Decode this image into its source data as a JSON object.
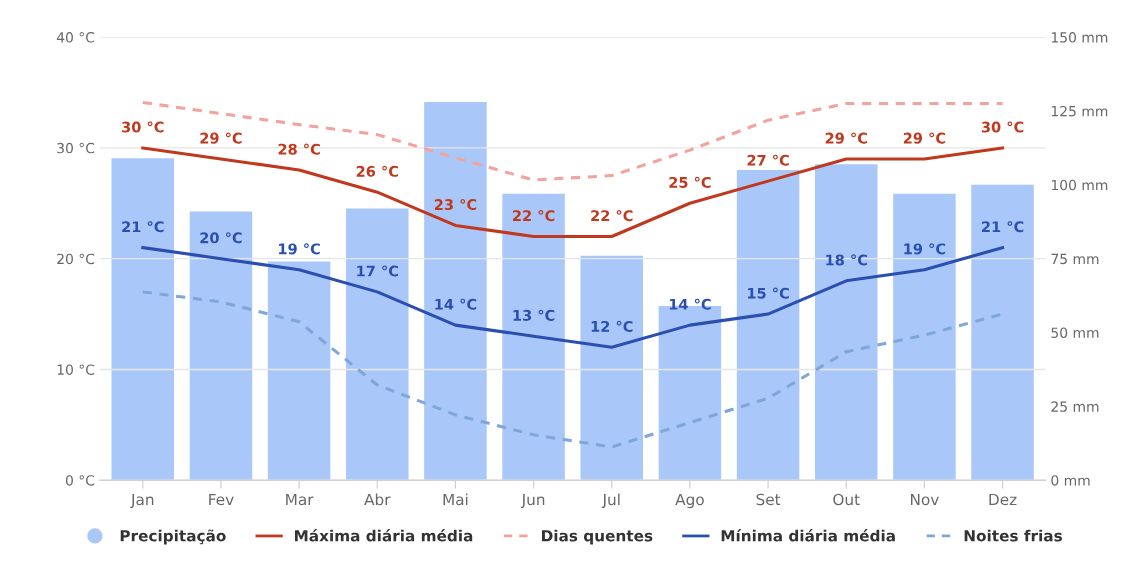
{
  "chart_data": {
    "type": "bar",
    "categories": [
      "Jan",
      "Fev",
      "Mar",
      "Abr",
      "Mai",
      "Jun",
      "Jul",
      "Ago",
      "Set",
      "Out",
      "Nov",
      "Dez"
    ],
    "series": [
      {
        "name": "Precipitação",
        "axis": "y2",
        "color": "#a9c8f9",
        "values": [
          109,
          91,
          74,
          92,
          128,
          97,
          76,
          59,
          105,
          107,
          97,
          100
        ]
      },
      {
        "name": "Máxima diária média",
        "type": "line",
        "color": "#c0391e",
        "line_style": "solid",
        "values": [
          30,
          29,
          28,
          26,
          23,
          22,
          22,
          25,
          27,
          29,
          29,
          30
        ],
        "value_labels": [
          "30 °C",
          "29 °C",
          "28 °C",
          "26 °C",
          "23 °C",
          "22 °C",
          "22 °C",
          "25 °C",
          "27 °C",
          "29 °C",
          "29 °C",
          "30 °C"
        ]
      },
      {
        "name": "Dias quentes",
        "type": "line",
        "color": "#f2a39c",
        "line_style": "dashed",
        "values": [
          34.1,
          33.1,
          32.1,
          31.2,
          29.1,
          27.1,
          27.5,
          29.8,
          32.5,
          34,
          34,
          34
        ]
      },
      {
        "name": "Mínima diária média",
        "type": "line",
        "color": "#2a4fb0",
        "line_style": "solid",
        "values": [
          21,
          20,
          19,
          17,
          14,
          13,
          12,
          14,
          15,
          18,
          19,
          21
        ],
        "value_labels": [
          "21 °C",
          "20 °C",
          "19 °C",
          "17 °C",
          "14 °C",
          "13 °C",
          "12 °C",
          "14 °C",
          "15 °C",
          "18 °C",
          "19 °C",
          "21 °C"
        ]
      },
      {
        "name": "Noites frias",
        "type": "line",
        "color": "#7ea6d8",
        "line_style": "dashed",
        "values": [
          17,
          16.1,
          14.3,
          8.6,
          5.9,
          4.1,
          3,
          5.2,
          7.4,
          11.6,
          13.1,
          15
        ]
      }
    ],
    "ylim": [
      0,
      40
    ],
    "yticks": [
      {
        "value": 0,
        "label": "0 °C"
      },
      {
        "value": 10,
        "label": "10 °C"
      },
      {
        "value": 20,
        "label": "20 °C"
      },
      {
        "value": 30,
        "label": "30 °C"
      },
      {
        "value": 40,
        "label": "40 °C"
      }
    ],
    "y2lim": [
      0,
      150
    ],
    "y2ticks": [
      {
        "value": 0,
        "label": "0 mm"
      },
      {
        "value": 25,
        "label": "25 mm"
      },
      {
        "value": 50,
        "label": "50 mm"
      },
      {
        "value": 75,
        "label": "75 mm"
      },
      {
        "value": 100,
        "label": "100 mm"
      },
      {
        "value": 125,
        "label": "125 mm"
      },
      {
        "value": 150,
        "label": "150 mm"
      }
    ],
    "grid": "y",
    "legend": "bottom",
    "marker": "none"
  }
}
